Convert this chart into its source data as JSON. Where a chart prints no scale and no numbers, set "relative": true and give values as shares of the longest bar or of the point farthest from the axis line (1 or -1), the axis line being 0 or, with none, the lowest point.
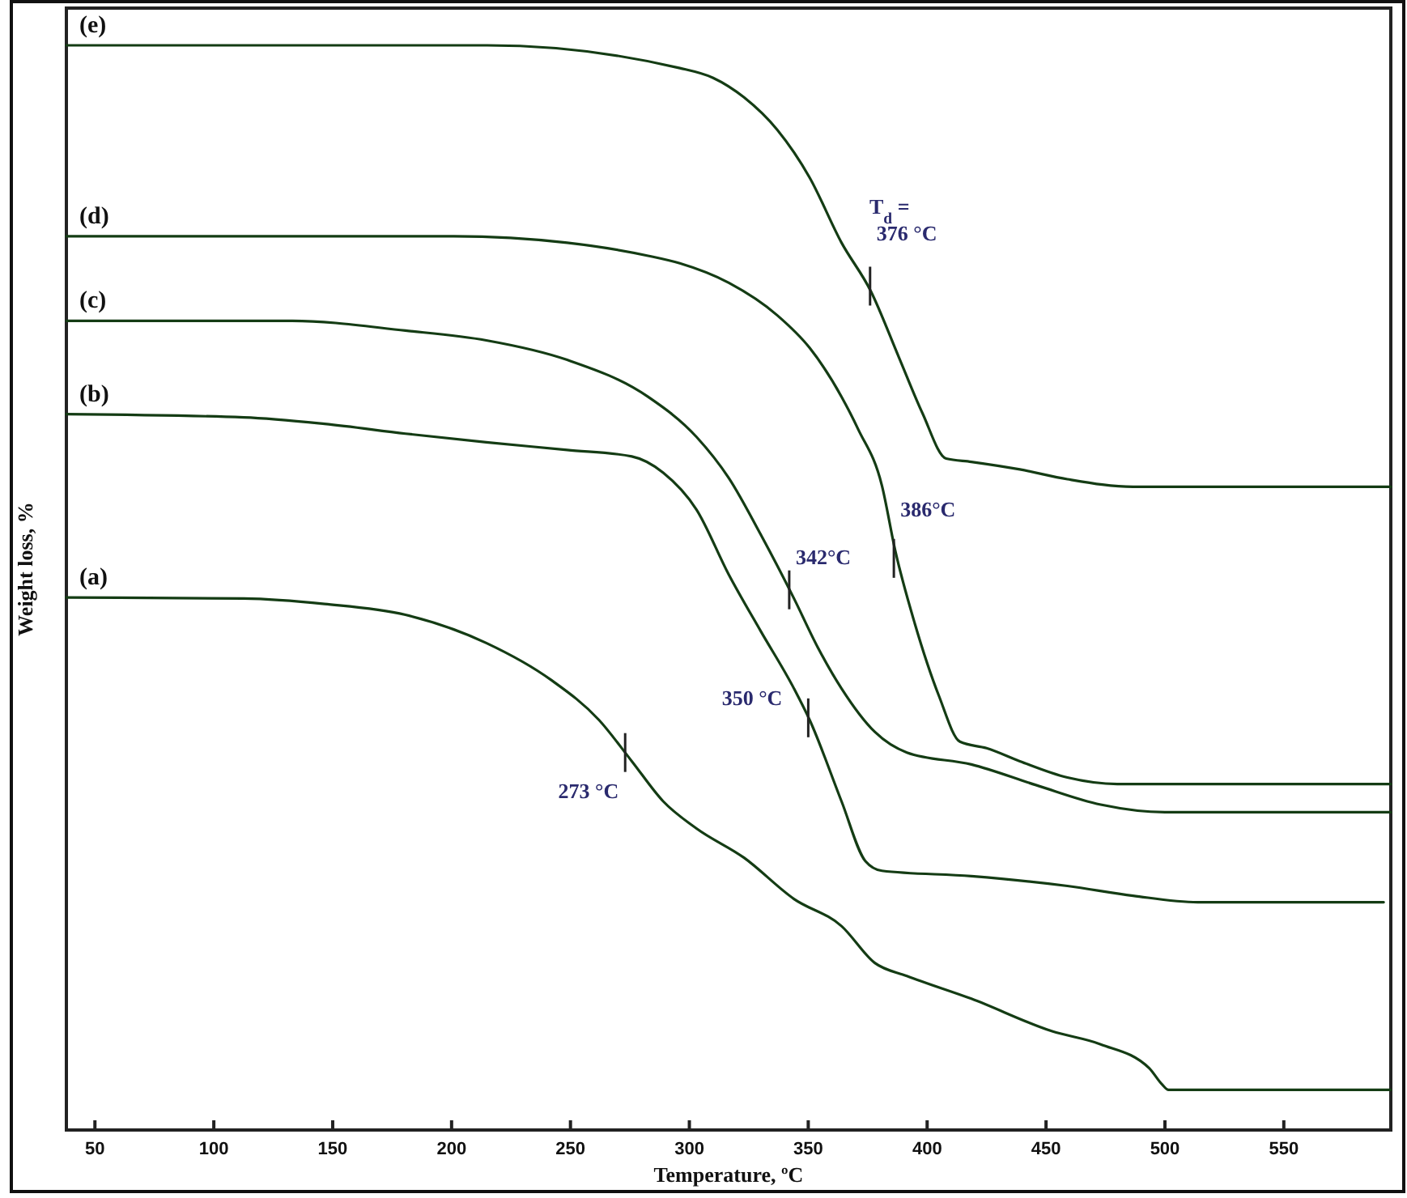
{
  "chart_data": {
    "type": "line",
    "relative": true,
    "xlabel": "Temperature, ºC",
    "ylabel": "Weight loss, %",
    "xlim": [
      38,
      595
    ],
    "xticks": [
      50,
      100,
      150,
      200,
      250,
      300,
      350,
      400,
      450,
      500,
      550
    ],
    "series": [
      {
        "name": "(a)",
        "color": "#143c14",
        "x": [
          38,
          112.6,
          146.6,
          180.6,
          214.6,
          241.8,
          262,
          275.8,
          289,
          303,
          323,
          344,
          364,
          378,
          391.5,
          418.6,
          452.6,
          473,
          493.4,
          498.8,
          501.5,
          595
        ],
        "values": [
          0.491,
          0.49,
          0.485,
          0.475,
          0.449,
          0.415,
          0.378,
          0.34,
          0.303,
          0.278,
          0.251,
          0.213,
          0.188,
          0.154,
          0.142,
          0.121,
          0.091,
          0.079,
          0.057,
          0.042,
          0.037,
          0.037
        ]
      },
      {
        "name": "(b)",
        "color": "#143c14",
        "x": [
          38,
          112.6,
          146.6,
          180.6,
          214.6,
          248.6,
          275.8,
          289,
          303,
          316.6,
          330,
          344,
          350.6,
          364,
          374,
          381,
          418.6,
          459,
          486.6,
          513.8,
          592
        ],
        "values": [
          0.66,
          0.657,
          0.651,
          0.642,
          0.634,
          0.627,
          0.621,
          0.606,
          0.572,
          0.512,
          0.46,
          0.407,
          0.378,
          0.303,
          0.248,
          0.239,
          0.234,
          0.225,
          0.216,
          0.21,
          0.21
        ]
      },
      {
        "name": "(c)",
        "color": "#143c14",
        "x": [
          38,
          133,
          180.6,
          214.6,
          248.6,
          282.6,
          303,
          316.6,
          330,
          344,
          354,
          364,
          378,
          391.5,
          418.6,
          445.8,
          473,
          500,
          595
        ],
        "values": [
          0.746,
          0.746,
          0.737,
          0.728,
          0.71,
          0.676,
          0.639,
          0.601,
          0.549,
          0.49,
          0.445,
          0.407,
          0.367,
          0.348,
          0.337,
          0.318,
          0.3,
          0.293,
          0.293
        ]
      },
      {
        "name": "(d)",
        "color": "#143c14",
        "x": [
          38,
          201,
          248.6,
          282.6,
          296,
          316.6,
          337,
          350.6,
          364,
          371,
          381,
          386.6,
          394.8,
          405,
          413.8,
          425,
          439,
          459,
          480,
          500,
          595
        ],
        "values": [
          0.824,
          0.824,
          0.818,
          0.806,
          0.799,
          0.781,
          0.751,
          0.721,
          0.676,
          0.646,
          0.594,
          0.534,
          0.467,
          0.4,
          0.358,
          0.352,
          0.34,
          0.325,
          0.319,
          0.319,
          0.319
        ]
      },
      {
        "name": "(e)",
        "color": "#143c14",
        "x": [
          38,
          215,
          296,
          310,
          323,
          337,
          350.6,
          364,
          376.4,
          388,
          398,
          408,
          418.6,
          439,
          459,
          486.6,
          595
        ],
        "values": [
          1,
          1,
          0.979,
          0.97,
          0.952,
          0.922,
          0.878,
          0.818,
          0.773,
          0.713,
          0.661,
          0.619,
          0.616,
          0.609,
          0.6,
          0.593,
          0.593
        ]
      }
    ],
    "annotations": [
      "T$_{d}$ =",
      {
        "text": "376 °C",
        "x": 376,
        "y": 0.778
      },
      {
        "text": "386°C",
        "x": 386,
        "y": 0.527
      },
      {
        "text": "342°C",
        "x": 342,
        "y": 0.498
      },
      {
        "text": "350 °C",
        "x": 350,
        "y": 0.38
      },
      {
        "text": "273 °C",
        "x": 273,
        "y": 0.348
      }
    ]
  }
}
